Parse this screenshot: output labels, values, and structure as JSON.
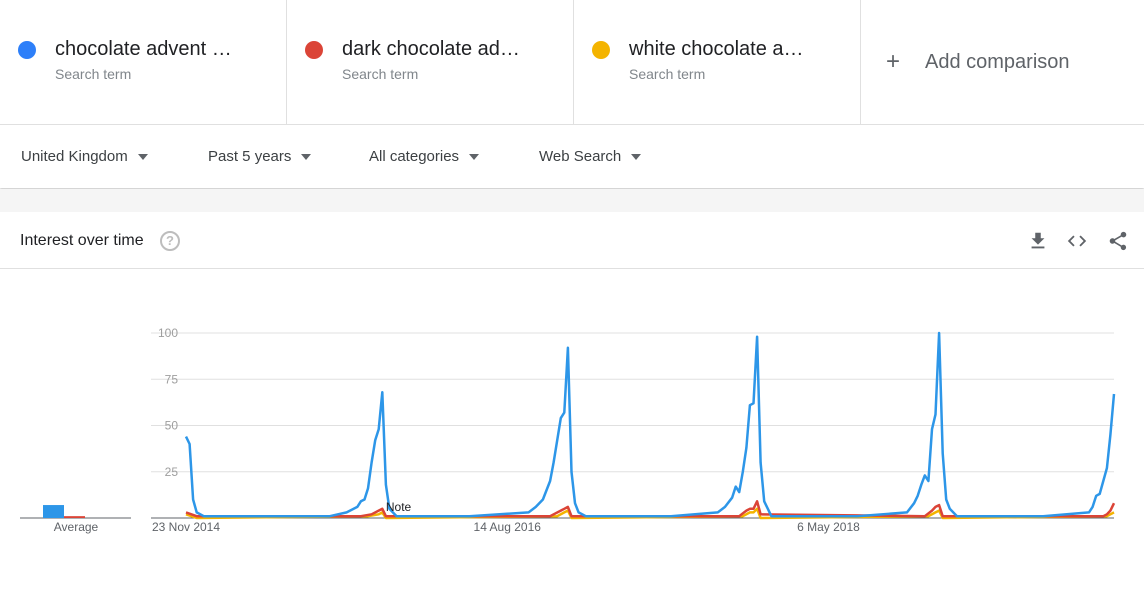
{
  "terms": [
    {
      "name": "chocolate advent …",
      "sub": "Search term",
      "color": "#2d7ff9"
    },
    {
      "name": "dark chocolate ad…",
      "sub": "Search term",
      "color": "#db4437"
    },
    {
      "name": "white chocolate a…",
      "sub": "Search term",
      "color": "#f4b400"
    }
  ],
  "add_comparison": {
    "icon": "plus-icon",
    "label": "Add comparison"
  },
  "filters": {
    "region": "United Kingdom",
    "time": "Past 5 years",
    "category": "All categories",
    "search_type": "Web Search"
  },
  "card": {
    "title": "Interest over time",
    "help_icon": "help-icon",
    "tools": [
      "download-icon",
      "embed-code-icon",
      "share-icon"
    ]
  },
  "chart_data": {
    "type": "line",
    "title": "",
    "xlabel": "",
    "ylabel": "",
    "ylim": [
      0,
      100
    ],
    "yticks": [
      25,
      50,
      75,
      100
    ],
    "x_tick_labels": [
      "23 Nov 2014",
      "14 Aug 2016",
      "6 May 2018"
    ],
    "x_range": [
      "2014-11-23",
      "2019-11-17"
    ],
    "note_label": "Note",
    "average_label": "Average",
    "averages": [
      7,
      1,
      0
    ],
    "series": [
      {
        "color": "#2d96e8",
        "points": [
          [
            "2014-11-23",
            44
          ],
          [
            "2014-11-30",
            40
          ],
          [
            "2014-12-07",
            10
          ],
          [
            "2014-12-14",
            3
          ],
          [
            "2014-12-28",
            1
          ],
          [
            "2015-03-01",
            1
          ],
          [
            "2015-09-01",
            1
          ],
          [
            "2015-10-04",
            3
          ],
          [
            "2015-10-25",
            6
          ],
          [
            "2015-11-01",
            9
          ],
          [
            "2015-11-08",
            10
          ],
          [
            "2015-11-15",
            16
          ],
          [
            "2015-11-22",
            30
          ],
          [
            "2015-11-29",
            42
          ],
          [
            "2015-12-06",
            48
          ],
          [
            "2015-12-13",
            68
          ],
          [
            "2015-12-20",
            18
          ],
          [
            "2015-12-27",
            5
          ],
          [
            "2016-01-10",
            1
          ],
          [
            "2016-06-01",
            1
          ],
          [
            "2016-09-25",
            3
          ],
          [
            "2016-10-09",
            6
          ],
          [
            "2016-10-23",
            10
          ],
          [
            "2016-11-06",
            20
          ],
          [
            "2016-11-13",
            30
          ],
          [
            "2016-11-20",
            42
          ],
          [
            "2016-11-27",
            54
          ],
          [
            "2016-12-04",
            57
          ],
          [
            "2016-12-11",
            92
          ],
          [
            "2016-12-18",
            25
          ],
          [
            "2016-12-25",
            8
          ],
          [
            "2017-01-01",
            3
          ],
          [
            "2017-01-15",
            1
          ],
          [
            "2017-07-01",
            1
          ],
          [
            "2017-10-01",
            3
          ],
          [
            "2017-10-15",
            6
          ],
          [
            "2017-10-29",
            11
          ],
          [
            "2017-11-05",
            17
          ],
          [
            "2017-11-12",
            14
          ],
          [
            "2017-11-19",
            25
          ],
          [
            "2017-11-26",
            38
          ],
          [
            "2017-12-03",
            61
          ],
          [
            "2017-12-10",
            62
          ],
          [
            "2017-12-17",
            98
          ],
          [
            "2017-12-24",
            30
          ],
          [
            "2017-12-31",
            9
          ],
          [
            "2018-01-14",
            1
          ],
          [
            "2018-07-01",
            1
          ],
          [
            "2018-10-07",
            3
          ],
          [
            "2018-10-21",
            8
          ],
          [
            "2018-10-28",
            12
          ],
          [
            "2018-11-04",
            18
          ],
          [
            "2018-11-11",
            23
          ],
          [
            "2018-11-18",
            20
          ],
          [
            "2018-11-25",
            48
          ],
          [
            "2018-12-02",
            56
          ],
          [
            "2018-12-09",
            100
          ],
          [
            "2018-12-16",
            35
          ],
          [
            "2018-12-23",
            10
          ],
          [
            "2018-12-30",
            5
          ],
          [
            "2019-01-13",
            1
          ],
          [
            "2019-07-01",
            1
          ],
          [
            "2019-09-29",
            3
          ],
          [
            "2019-10-06",
            6
          ],
          [
            "2019-10-13",
            12
          ],
          [
            "2019-10-20",
            13
          ],
          [
            "2019-10-27",
            20
          ],
          [
            "2019-11-03",
            27
          ],
          [
            "2019-11-10",
            45
          ],
          [
            "2019-11-17",
            67
          ]
        ]
      },
      {
        "color": "#db4437",
        "points": [
          [
            "2014-11-23",
            3
          ],
          [
            "2014-12-14",
            1
          ],
          [
            "2015-11-01",
            1
          ],
          [
            "2015-11-22",
            2
          ],
          [
            "2015-12-06",
            4
          ],
          [
            "2015-12-13",
            5
          ],
          [
            "2015-12-20",
            1
          ],
          [
            "2016-11-06",
            1
          ],
          [
            "2016-11-27",
            4
          ],
          [
            "2016-12-04",
            5
          ],
          [
            "2016-12-11",
            6
          ],
          [
            "2016-12-18",
            1
          ],
          [
            "2017-11-12",
            1
          ],
          [
            "2017-11-26",
            4
          ],
          [
            "2017-12-03",
            5
          ],
          [
            "2017-12-10",
            5
          ],
          [
            "2017-12-17",
            9
          ],
          [
            "2017-12-24",
            2
          ],
          [
            "2018-11-11",
            1
          ],
          [
            "2018-11-25",
            4
          ],
          [
            "2018-12-02",
            6
          ],
          [
            "2018-12-09",
            7
          ],
          [
            "2018-12-16",
            1
          ],
          [
            "2019-10-27",
            1
          ],
          [
            "2019-11-03",
            2
          ],
          [
            "2019-11-10",
            4
          ],
          [
            "2019-11-17",
            8
          ]
        ]
      },
      {
        "color": "#f4b400",
        "points": [
          [
            "2014-11-23",
            2
          ],
          [
            "2014-12-14",
            0
          ],
          [
            "2015-11-15",
            1
          ],
          [
            "2015-12-06",
            2
          ],
          [
            "2015-12-13",
            3
          ],
          [
            "2015-12-20",
            0
          ],
          [
            "2016-11-20",
            1
          ],
          [
            "2016-12-04",
            3
          ],
          [
            "2016-12-11",
            4
          ],
          [
            "2016-12-18",
            0
          ],
          [
            "2017-11-19",
            1
          ],
          [
            "2017-12-03",
            3
          ],
          [
            "2017-12-10",
            3
          ],
          [
            "2017-12-17",
            5
          ],
          [
            "2017-12-24",
            0
          ],
          [
            "2018-11-18",
            1
          ],
          [
            "2018-12-02",
            3
          ],
          [
            "2018-12-09",
            4
          ],
          [
            "2018-12-16",
            0
          ],
          [
            "2019-11-03",
            1
          ],
          [
            "2019-11-10",
            2
          ],
          [
            "2019-11-17",
            3
          ]
        ]
      }
    ]
  }
}
